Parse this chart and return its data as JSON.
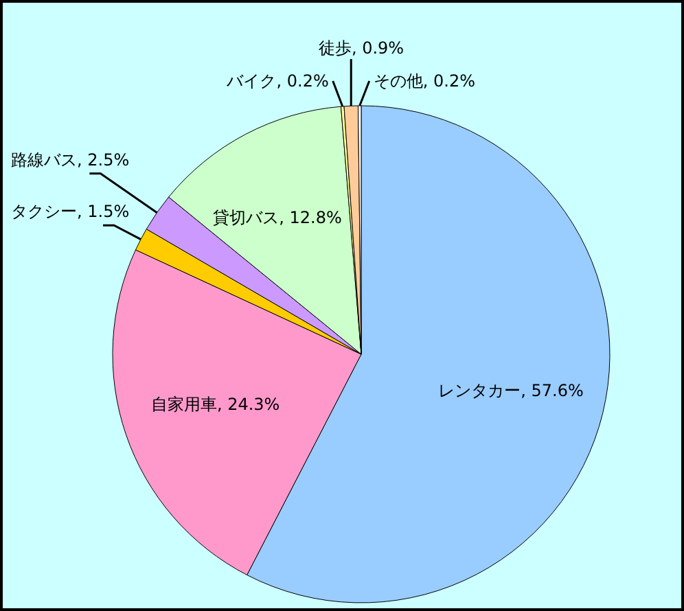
{
  "chart_data": {
    "type": "pie",
    "categories": [
      "レンタカー",
      "自家用車",
      "タクシー",
      "路線バス",
      "貸切バス",
      "バイク",
      "徒歩",
      "その他"
    ],
    "values": [
      57.6,
      24.3,
      1.5,
      2.5,
      12.8,
      0.2,
      0.9,
      0.2
    ],
    "colors": [
      "#99ccff",
      "#ff99cc",
      "#ffcc00",
      "#cc99ff",
      "#ccffcc",
      "#ffff99",
      "#ffcc99",
      "#ffffff"
    ],
    "value_labels": [
      "57.6%",
      "24.3%",
      "1.5%",
      "2.5%",
      "12.8%",
      "0.2%",
      "0.9%",
      "0.2%"
    ]
  }
}
